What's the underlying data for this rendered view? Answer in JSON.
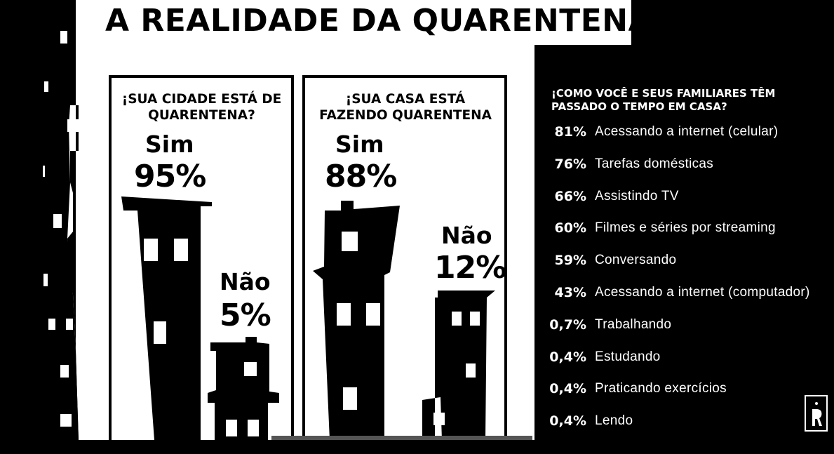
{
  "title": "A REALIDADE DA QUARENTENA",
  "colors": {
    "background": "#000000",
    "panel": "#ffffff",
    "ink": "#000000",
    "text_inverse": "#ffffff"
  },
  "panels": [
    {
      "question": "¡SUA CIDADE ESTÁ DE QUARENTENA?",
      "yes_label": "Sim",
      "yes_value": "95%",
      "no_label": "Não",
      "no_value": "5%"
    },
    {
      "question": "¡SUA CASA ESTÁ FAZENDO QUARENTENA",
      "yes_label": "Sim",
      "yes_value": "88%",
      "no_label": "Não",
      "no_value": "12%"
    }
  ],
  "activities": {
    "question": "¡COMO VOCÊ E SEUS FAMILIARES TÊM PASSADO O TEMPO EM CASA?",
    "items": [
      {
        "value": "81%",
        "label": "Acessando a internet (celular)"
      },
      {
        "value": "76%",
        "label": "Tarefas domésticas"
      },
      {
        "value": "66%",
        "label": "Assistindo TV"
      },
      {
        "value": "60%",
        "label": "Filmes e séries por streaming"
      },
      {
        "value": "59%",
        "label": "Conversando"
      },
      {
        "value": "43%",
        "label": "Acessando a internet (computador)"
      },
      {
        "value": "0,7%",
        "label": "Trabalhando"
      },
      {
        "value": "0,4%",
        "label": "Estudando"
      },
      {
        "value": "0,4%",
        "label": "Praticando exercícios"
      },
      {
        "value": "0,4%",
        "label": "Lendo"
      }
    ]
  },
  "chart_data": [
    {
      "type": "bar",
      "title": "¡SUA CIDADE ESTÁ DE QUARENTENA?",
      "categories": [
        "Sim",
        "Não"
      ],
      "values": [
        95,
        5
      ]
    },
    {
      "type": "bar",
      "title": "¡SUA CASA ESTÁ FAZENDO QUARENTENA",
      "categories": [
        "Sim",
        "Não"
      ],
      "values": [
        88,
        12
      ]
    },
    {
      "type": "table",
      "title": "¡COMO VOCÊ E SEUS FAMILIARES TÊM PASSADO O TEMPO EM CASA?",
      "categories": [
        "Acessando a internet (celular)",
        "Tarefas domésticas",
        "Assistindo TV",
        "Filmes e séries por streaming",
        "Conversando",
        "Acessando a internet (computador)",
        "Trabalhando",
        "Estudando",
        "Praticando exercícios",
        "Lendo"
      ],
      "values": [
        81,
        76,
        66,
        60,
        59,
        43,
        0.7,
        0.4,
        0.4,
        0.4
      ]
    }
  ]
}
